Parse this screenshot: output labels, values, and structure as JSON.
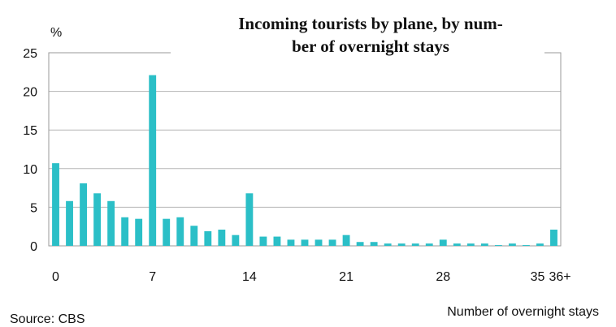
{
  "chart_data": {
    "type": "bar",
    "title_lines": [
      "Incoming tourists by plane, by num-",
      "ber of overnight stays"
    ],
    "ylabel": "%",
    "xlabel": "Number of overnight stays",
    "source": "Source: CBS",
    "ylim": [
      0,
      25
    ],
    "yticks": [
      0,
      5,
      10,
      15,
      20,
      25
    ],
    "x_tick_labels": [
      {
        "x": 0,
        "label": "0"
      },
      {
        "x": 7,
        "label": "7"
      },
      {
        "x": 14,
        "label": "14"
      },
      {
        "x": 21,
        "label": "21"
      },
      {
        "x": 28,
        "label": "28"
      },
      {
        "x": 35,
        "label": "35"
      },
      {
        "x": 36,
        "label": "36+"
      }
    ],
    "grid": true,
    "bar_color": "#2bbfc7",
    "values": [
      10.7,
      5.8,
      8.1,
      6.8,
      5.8,
      3.7,
      3.5,
      22.1,
      3.5,
      3.7,
      2.6,
      1.9,
      2.1,
      1.4,
      6.8,
      1.2,
      1.2,
      0.8,
      0.8,
      0.8,
      0.8,
      1.4,
      0.5,
      0.5,
      0.3,
      0.3,
      0.3,
      0.3,
      0.8,
      0.3,
      0.3,
      0.3,
      0.1,
      0.3,
      0.1,
      0.3,
      2.1
    ]
  }
}
